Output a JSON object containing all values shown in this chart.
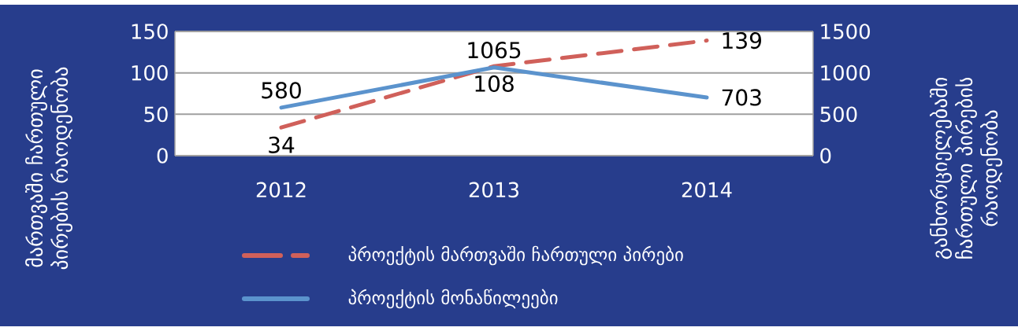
{
  "chart_data": {
    "type": "line",
    "categories": [
      "2012",
      "2013",
      "2014"
    ],
    "ylabel": "მართვაში ჩართული პირების რაოდენობა",
    "y2label": "განხორციელებაში ჩართული პირების რაოდენობა",
    "ylim": [
      0,
      150
    ],
    "yticks": [
      0,
      50,
      100,
      150
    ],
    "y2lim": [
      0,
      1500
    ],
    "y2ticks": [
      0,
      500,
      1000,
      1500
    ],
    "grid": "y",
    "legend": "bottom",
    "data_labels": true,
    "series": [
      {
        "name": "პროექტის მართვაში ჩართული პირები",
        "color": "#d0605a",
        "line_style": "dashed",
        "values": [
          34,
          108,
          139
        ]
      },
      {
        "name": "პროექტის მონაწილეები",
        "color": "#5b93cd",
        "line_style": "solid",
        "axis": "y2",
        "values": [
          580,
          1065,
          703
        ]
      }
    ]
  }
}
